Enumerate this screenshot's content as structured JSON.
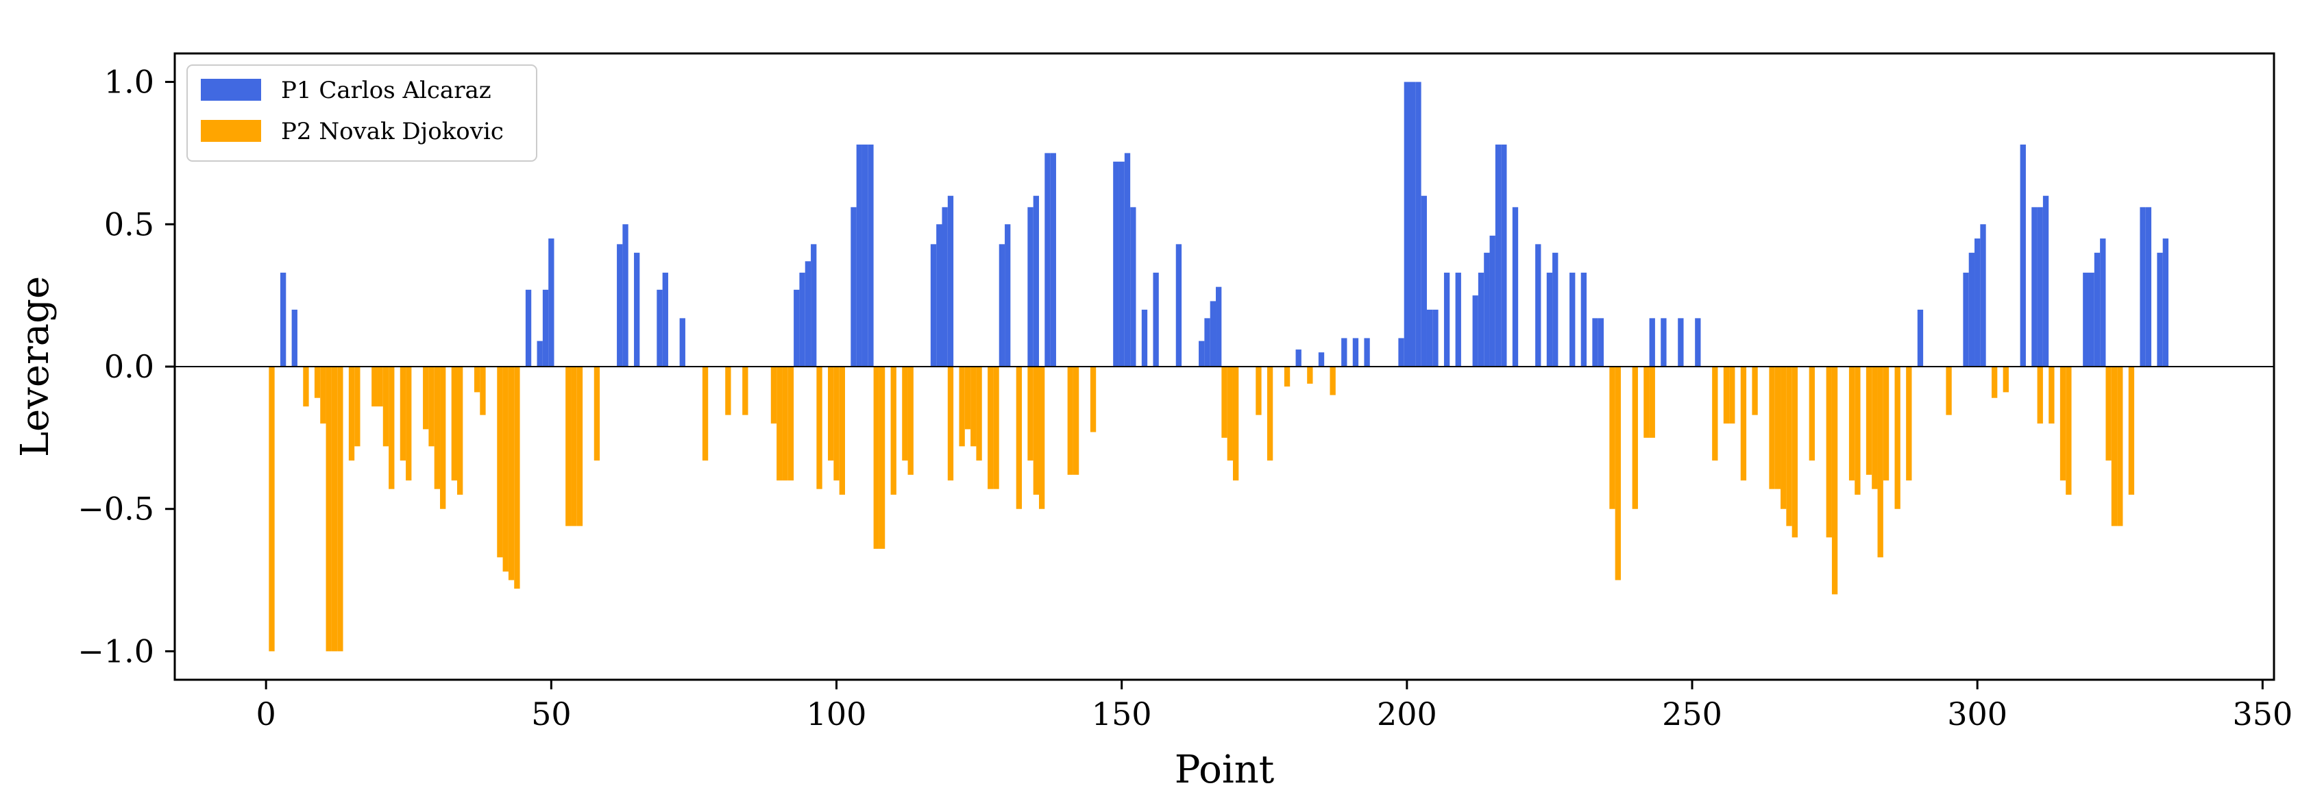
{
  "chart_data": {
    "type": "bar",
    "xlabel": "Point",
    "ylabel": "Leverage",
    "xlim": [
      -16,
      352
    ],
    "ylim": [
      -1.1,
      1.1
    ],
    "xticks": [
      0,
      50,
      100,
      150,
      200,
      250,
      300,
      350
    ],
    "yticks": [
      -1.0,
      -0.5,
      0.0,
      0.5,
      1.0
    ],
    "xtick_labels": [
      "0",
      "50",
      "100",
      "150",
      "200",
      "250",
      "300",
      "350"
    ],
    "ytick_labels": [
      "−1.0",
      "−0.5",
      "0.0",
      "0.5",
      "1.0"
    ],
    "grid": false,
    "legend_position": "top-left",
    "colors": {
      "p1": "#4169e1",
      "p2": "#ffa500"
    },
    "series": [
      {
        "name": "P1 Carlos Alcaraz",
        "color": "#4169e1",
        "points": [
          [
            3,
            0.33
          ],
          [
            5,
            0.2
          ],
          [
            46,
            0.27
          ],
          [
            48,
            0.09
          ],
          [
            49,
            0.27
          ],
          [
            50,
            0.45
          ],
          [
            62,
            0.43
          ],
          [
            63,
            0.5
          ],
          [
            65,
            0.4
          ],
          [
            69,
            0.27
          ],
          [
            70,
            0.33
          ],
          [
            73,
            0.17
          ],
          [
            93,
            0.27
          ],
          [
            94,
            0.33
          ],
          [
            95,
            0.37
          ],
          [
            96,
            0.43
          ],
          [
            103,
            0.56
          ],
          [
            104,
            0.78
          ],
          [
            105,
            0.78
          ],
          [
            106,
            0.78
          ],
          [
            117,
            0.43
          ],
          [
            118,
            0.5
          ],
          [
            119,
            0.56
          ],
          [
            120,
            0.6
          ],
          [
            129,
            0.43
          ],
          [
            130,
            0.5
          ],
          [
            134,
            0.56
          ],
          [
            135,
            0.6
          ],
          [
            137,
            0.75
          ],
          [
            138,
            0.75
          ],
          [
            149,
            0.72
          ],
          [
            150,
            0.72
          ],
          [
            151,
            0.75
          ],
          [
            152,
            0.56
          ],
          [
            154,
            0.2
          ],
          [
            156,
            0.33
          ],
          [
            160,
            0.43
          ],
          [
            164,
            0.09
          ],
          [
            165,
            0.17
          ],
          [
            166,
            0.23
          ],
          [
            167,
            0.28
          ],
          [
            181,
            0.06
          ],
          [
            185,
            0.05
          ],
          [
            189,
            0.1
          ],
          [
            191,
            0.1
          ],
          [
            193,
            0.1
          ],
          [
            199,
            0.1
          ],
          [
            200,
            1.0
          ],
          [
            201,
            1.0
          ],
          [
            202,
            1.0
          ],
          [
            203,
            0.6
          ],
          [
            204,
            0.2
          ],
          [
            205,
            0.2
          ],
          [
            207,
            0.33
          ],
          [
            209,
            0.33
          ],
          [
            212,
            0.25
          ],
          [
            213,
            0.33
          ],
          [
            214,
            0.4
          ],
          [
            215,
            0.46
          ],
          [
            216,
            0.78
          ],
          [
            217,
            0.78
          ],
          [
            219,
            0.56
          ],
          [
            223,
            0.43
          ],
          [
            225,
            0.33
          ],
          [
            226,
            0.4
          ],
          [
            229,
            0.33
          ],
          [
            231,
            0.33
          ],
          [
            233,
            0.17
          ],
          [
            234,
            0.17
          ],
          [
            243,
            0.17
          ],
          [
            245,
            0.17
          ],
          [
            248,
            0.17
          ],
          [
            251,
            0.17
          ],
          [
            290,
            0.2
          ],
          [
            298,
            0.33
          ],
          [
            299,
            0.4
          ],
          [
            300,
            0.45
          ],
          [
            301,
            0.5
          ],
          [
            308,
            0.78
          ],
          [
            310,
            0.56
          ],
          [
            311,
            0.56
          ],
          [
            312,
            0.6
          ],
          [
            319,
            0.33
          ],
          [
            320,
            0.33
          ],
          [
            321,
            0.4
          ],
          [
            322,
            0.45
          ],
          [
            329,
            0.56
          ],
          [
            330,
            0.56
          ],
          [
            332,
            0.4
          ],
          [
            333,
            0.45
          ]
        ]
      },
      {
        "name": "P2 Novak Djokovic",
        "color": "#ffa500",
        "points": [
          [
            1,
            -1.0
          ],
          [
            7,
            -0.14
          ],
          [
            9,
            -0.11
          ],
          [
            10,
            -0.2
          ],
          [
            11,
            -1.0
          ],
          [
            12,
            -1.0
          ],
          [
            13,
            -1.0
          ],
          [
            15,
            -0.33
          ],
          [
            16,
            -0.28
          ],
          [
            19,
            -0.14
          ],
          [
            20,
            -0.14
          ],
          [
            21,
            -0.28
          ],
          [
            22,
            -0.43
          ],
          [
            24,
            -0.33
          ],
          [
            25,
            -0.4
          ],
          [
            28,
            -0.22
          ],
          [
            29,
            -0.28
          ],
          [
            30,
            -0.43
          ],
          [
            31,
            -0.5
          ],
          [
            33,
            -0.4
          ],
          [
            34,
            -0.45
          ],
          [
            37,
            -0.09
          ],
          [
            38,
            -0.17
          ],
          [
            41,
            -0.67
          ],
          [
            42,
            -0.72
          ],
          [
            43,
            -0.75
          ],
          [
            44,
            -0.78
          ],
          [
            53,
            -0.56
          ],
          [
            54,
            -0.56
          ],
          [
            55,
            -0.56
          ],
          [
            58,
            -0.33
          ],
          [
            77,
            -0.33
          ],
          [
            81,
            -0.17
          ],
          [
            84,
            -0.17
          ],
          [
            89,
            -0.2
          ],
          [
            90,
            -0.4
          ],
          [
            91,
            -0.4
          ],
          [
            92,
            -0.4
          ],
          [
            97,
            -0.43
          ],
          [
            99,
            -0.33
          ],
          [
            100,
            -0.4
          ],
          [
            101,
            -0.45
          ],
          [
            107,
            -0.64
          ],
          [
            108,
            -0.64
          ],
          [
            110,
            -0.45
          ],
          [
            112,
            -0.33
          ],
          [
            113,
            -0.38
          ],
          [
            120,
            -0.4
          ],
          [
            122,
            -0.28
          ],
          [
            123,
            -0.22
          ],
          [
            124,
            -0.28
          ],
          [
            125,
            -0.33
          ],
          [
            127,
            -0.43
          ],
          [
            128,
            -0.43
          ],
          [
            132,
            -0.5
          ],
          [
            134,
            -0.33
          ],
          [
            135,
            -0.45
          ],
          [
            136,
            -0.5
          ],
          [
            141,
            -0.38
          ],
          [
            142,
            -0.38
          ],
          [
            145,
            -0.23
          ],
          [
            168,
            -0.25
          ],
          [
            169,
            -0.33
          ],
          [
            170,
            -0.4
          ],
          [
            174,
            -0.17
          ],
          [
            176,
            -0.33
          ],
          [
            179,
            -0.07
          ],
          [
            183,
            -0.06
          ],
          [
            187,
            -0.1
          ],
          [
            236,
            -0.5
          ],
          [
            237,
            -0.75
          ],
          [
            240,
            -0.5
          ],
          [
            242,
            -0.25
          ],
          [
            243,
            -0.25
          ],
          [
            254,
            -0.33
          ],
          [
            256,
            -0.2
          ],
          [
            257,
            -0.2
          ],
          [
            259,
            -0.4
          ],
          [
            261,
            -0.17
          ],
          [
            264,
            -0.43
          ],
          [
            265,
            -0.43
          ],
          [
            266,
            -0.5
          ],
          [
            267,
            -0.56
          ],
          [
            268,
            -0.6
          ],
          [
            271,
            -0.33
          ],
          [
            274,
            -0.6
          ],
          [
            275,
            -0.8
          ],
          [
            278,
            -0.4
          ],
          [
            279,
            -0.45
          ],
          [
            281,
            -0.38
          ],
          [
            282,
            -0.43
          ],
          [
            283,
            -0.67
          ],
          [
            284,
            -0.4
          ],
          [
            286,
            -0.5
          ],
          [
            288,
            -0.4
          ],
          [
            295,
            -0.17
          ],
          [
            303,
            -0.11
          ],
          [
            305,
            -0.09
          ],
          [
            311,
            -0.2
          ],
          [
            313,
            -0.2
          ],
          [
            315,
            -0.4
          ],
          [
            316,
            -0.45
          ],
          [
            323,
            -0.33
          ],
          [
            324,
            -0.56
          ],
          [
            325,
            -0.56
          ],
          [
            327,
            -0.45
          ]
        ]
      }
    ]
  }
}
